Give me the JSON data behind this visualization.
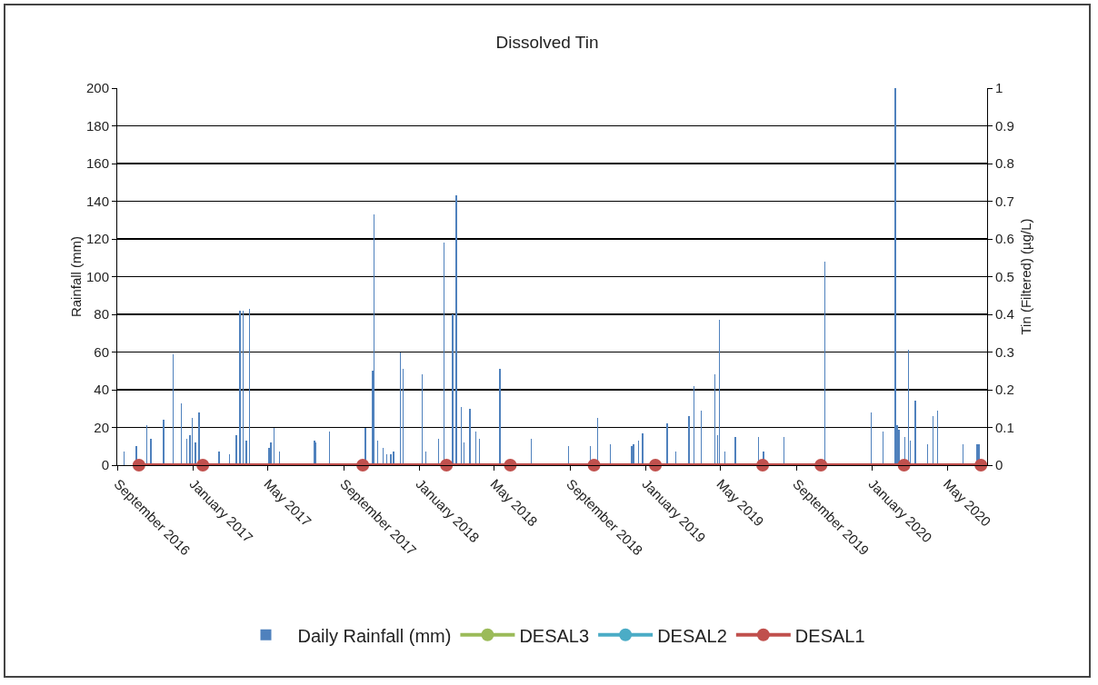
{
  "chart_data": {
    "type": "bar",
    "title": "Dissolved Tin",
    "ylabel": "Rainfall (mm)",
    "y2label": "Tin (Filtered) (µg/L)",
    "xlim": [
      "2016-08-31",
      "2020-07-04"
    ],
    "xticks": [
      {
        "value": "2016-09-01",
        "label": "September 2016"
      },
      {
        "value": "2017-01-01",
        "label": "January 2017"
      },
      {
        "value": "2017-05-01",
        "label": "May 2017"
      },
      {
        "value": "2017-09-01",
        "label": "September 2017"
      },
      {
        "value": "2018-01-01",
        "label": "January 2018"
      },
      {
        "value": "2018-05-01",
        "label": "May 2018"
      },
      {
        "value": "2018-09-01",
        "label": "September 2018"
      },
      {
        "value": "2019-01-01",
        "label": "January 2019"
      },
      {
        "value": "2019-05-01",
        "label": "May 2019"
      },
      {
        "value": "2019-09-01",
        "label": "September 2019"
      },
      {
        "value": "2020-01-01",
        "label": "January 2020"
      },
      {
        "value": "2020-05-01",
        "label": "May 2020"
      }
    ],
    "ylim": [
      0,
      200
    ],
    "yticks": [
      0,
      20,
      40,
      60,
      80,
      100,
      120,
      140,
      160,
      180,
      200
    ],
    "y2lim": [
      0,
      1
    ],
    "y2ticks": [
      0,
      0.1,
      0.2,
      0.3,
      0.4,
      0.5,
      0.6,
      0.7,
      0.8,
      0.9,
      1
    ],
    "grid": "y",
    "legend": "bottom",
    "series": [
      {
        "name": "Daily Rainfall (mm)",
        "color": "#4f81bd",
        "x": [
          "2016-09-11",
          "2016-10-01",
          "2016-10-18",
          "2016-10-24",
          "2016-11-14",
          "2016-11-29",
          "2016-12-12",
          "2016-12-21",
          "2016-12-26",
          "2016-12-30",
          "2017-01-04",
          "2017-01-10",
          "2017-02-11",
          "2017-02-28",
          "2017-03-11",
          "2017-03-17",
          "2017-03-22",
          "2017-03-27",
          "2017-04-01",
          "2017-05-03",
          "2017-05-06",
          "2017-05-11",
          "2017-05-20",
          "2017-07-15",
          "2017-07-17",
          "2017-08-08",
          "2017-10-05",
          "2017-10-17",
          "2017-10-19",
          "2017-10-25",
          "2017-11-03",
          "2017-11-09",
          "2017-11-15",
          "2017-11-20",
          "2017-12-01",
          "2017-12-05",
          "2018-01-05",
          "2018-01-11",
          "2018-01-31",
          "2018-02-09",
          "2018-02-23",
          "2018-03-01",
          "2018-03-09",
          "2018-03-13",
          "2018-03-23",
          "2018-04-01",
          "2018-04-07",
          "2018-05-10",
          "2018-06-30",
          "2018-08-29",
          "2018-10-03",
          "2018-10-15",
          "2018-11-04",
          "2018-12-09",
          "2018-12-12",
          "2018-12-20",
          "2018-12-26",
          "2019-02-04",
          "2019-02-18",
          "2019-03-11",
          "2019-03-19",
          "2019-03-31",
          "2019-04-22",
          "2019-04-26",
          "2019-04-29",
          "2019-05-08",
          "2019-05-25",
          "2019-07-01",
          "2019-07-09",
          "2019-08-11",
          "2019-10-16",
          "2019-12-30",
          "2020-01-18",
          "2020-02-07",
          "2020-02-10",
          "2020-02-13",
          "2020-02-22",
          "2020-02-28",
          "2020-03-02",
          "2020-03-10",
          "2020-03-30",
          "2020-04-08",
          "2020-04-15",
          "2020-05-26",
          "2020-06-18",
          "2020-06-21"
        ],
        "values": [
          7,
          10,
          21,
          14,
          24,
          59,
          33,
          14,
          16,
          25,
          12,
          28,
          7,
          6,
          16,
          82,
          82,
          13,
          83,
          9,
          12,
          20,
          7,
          13,
          12,
          18,
          20,
          50,
          133,
          13,
          9,
          6,
          6,
          7,
          60,
          51,
          48,
          7,
          14,
          118,
          80,
          143,
          31,
          12,
          30,
          18,
          14,
          51,
          14,
          10,
          10,
          25,
          11,
          10,
          11,
          13,
          17,
          22,
          7,
          26,
          42,
          29,
          48,
          16,
          77,
          7,
          15,
          15,
          7,
          15,
          108,
          28,
          18,
          200,
          21,
          19,
          15,
          61,
          13,
          34,
          11,
          26,
          29,
          11,
          11,
          11
        ]
      },
      {
        "name": "DESAL3",
        "type": "line",
        "axis": "y2",
        "color": "#9bbb59",
        "marker": "circle",
        "line_style": "solid"
      },
      {
        "name": "DESAL2",
        "type": "line",
        "axis": "y2",
        "color": "#4bacc6",
        "marker": "circle",
        "line_style": "solid"
      },
      {
        "name": "DESAL1",
        "type": "line",
        "axis": "y2",
        "color": "#c0504d",
        "marker": "circle",
        "line_style": "solid",
        "x": [
          "2016-10-05",
          "2017-01-16",
          "2017-10-01",
          "2018-02-13",
          "2018-05-27",
          "2018-10-09",
          "2019-01-16",
          "2019-07-08",
          "2019-10-10",
          "2020-02-21",
          "2020-06-24"
        ],
        "values": [
          0,
          0,
          0,
          0,
          0,
          0,
          0,
          0,
          0,
          0,
          0
        ]
      }
    ]
  }
}
